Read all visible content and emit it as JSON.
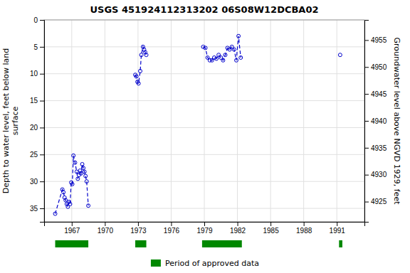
{
  "chart_data": {
    "type": "line",
    "title": "USGS 451924112313202 06S08W12DCBA02",
    "ylabel": "Depth to water level, feet below land\nsurface",
    "y2label": "Groundwater level above NGVD 1929, feet",
    "xlim": [
      1964.5,
      1993.5
    ],
    "xticks": [
      1967,
      1970,
      1973,
      1976,
      1979,
      1982,
      1985,
      1988,
      1991
    ],
    "ylim": [
      37.5,
      0
    ],
    "yticks": [
      0,
      5,
      10,
      15,
      20,
      25,
      30,
      35
    ],
    "y2lim": [
      4921.25,
      4958.75
    ],
    "y2ticks": [
      4925,
      4930,
      4935,
      4940,
      4945,
      4950,
      4955
    ],
    "grid": true,
    "legend": "bottom",
    "series": [
      {
        "color": "#0000cc",
        "line_style": "dashed",
        "marker": "circle",
        "x": [
          1965.5,
          1966.15,
          1966.25,
          1966.35,
          1966.45,
          1966.55,
          1966.65,
          1966.75,
          1966.85,
          1966.95,
          1967.05,
          1967.15,
          1967.3,
          1967.45,
          1967.55,
          1967.65,
          1967.75,
          1967.85,
          1967.95,
          1968.05,
          1968.15,
          1968.25,
          1968.35,
          1968.5
        ],
        "values": [
          36.0,
          31.5,
          32.0,
          33.0,
          33.5,
          34.2,
          34.7,
          33.8,
          34.2,
          30.2,
          30.5,
          25.2,
          26.5,
          28.2,
          29.5,
          28.8,
          28.0,
          28.5,
          26.8,
          27.5,
          28.2,
          29.0,
          30.0,
          34.5
        ]
      },
      {
        "color": "#0000cc",
        "line_style": "dashed",
        "marker": "circle",
        "x": [
          1972.75,
          1972.85,
          1972.95,
          1973.05,
          1973.2,
          1973.3,
          1973.45,
          1973.55,
          1973.65,
          1973.75
        ],
        "values": [
          10.2,
          10.5,
          11.5,
          11.8,
          9.5,
          6.5,
          5.0,
          5.5,
          6.0,
          6.5
        ]
      },
      {
        "color": "#0000cc",
        "line_style": "dashed",
        "marker": "circle",
        "x": [
          1978.9,
          1979.1,
          1979.3,
          1979.5,
          1979.7,
          1979.9,
          1980.1,
          1980.3,
          1980.5,
          1980.7,
          1980.9,
          1981.1,
          1981.3,
          1981.5,
          1981.7,
          1981.9,
          1982.1,
          1982.3
        ],
        "values": [
          5.0,
          5.2,
          7.0,
          7.5,
          7.5,
          7.0,
          7.2,
          6.5,
          7.0,
          7.5,
          6.5,
          5.2,
          5.5,
          5.0,
          5.5,
          7.5,
          3.0,
          7.0
        ]
      },
      {
        "color": "#0000cc",
        "line_style": "dashed",
        "marker": "circle",
        "x": [
          1991.3
        ],
        "values": [
          6.5
        ]
      }
    ],
    "approved_periods": {
      "name": "Period of approved data",
      "color": "#008800",
      "ranges": [
        [
          1965.5,
          1968.5
        ],
        [
          1972.75,
          1973.75
        ],
        [
          1978.8,
          1982.4
        ],
        [
          1991.2,
          1991.5
        ]
      ]
    }
  }
}
